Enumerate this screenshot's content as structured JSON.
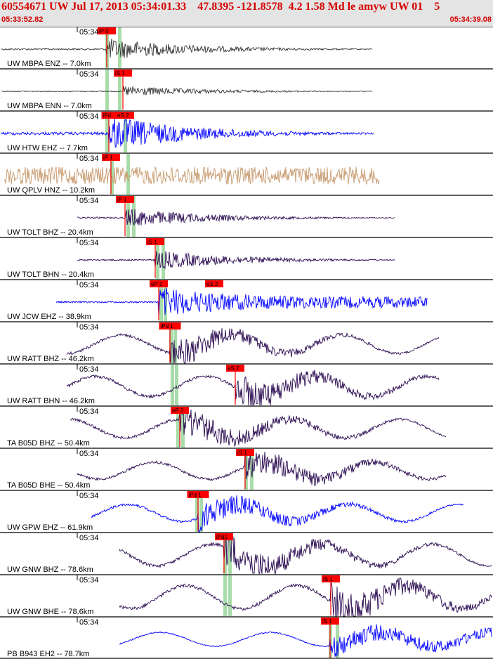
{
  "header": {
    "title": "60554671 UW Jul 17, 2013 05:34:01.33    47.8395 -121.8578  4.2 1.58 Md le amyw UW 01    5",
    "start_time": "05:33:52.82",
    "end_time": "05:34:39.08"
  },
  "colors": {
    "accent": "#d40000",
    "header_bg": "#e4e4e4",
    "pick_flag": "#ff0000",
    "pick_window": "#a8dca8"
  },
  "time_axis": {
    "tick_label": "05:34"
  },
  "traces": [
    {
      "label": "UW MBPA ENZ -- 7.0km",
      "color": "#333333",
      "pick": "iP 0",
      "pick2": ""
    },
    {
      "label": "UW MBPA ENN -- 7.0km",
      "color": "#333333",
      "pick": "iS 1",
      "pick2": ""
    },
    {
      "label": "UW HTW EHZ -- 7.7km",
      "color": "#0000ff",
      "pick": "iPd",
      "pick2": "eS 2"
    },
    {
      "label": "UW QPLV HNZ -- 10.2km",
      "color": "#c89a6e",
      "pick": "iP 1",
      "pick2": ""
    },
    {
      "label": "UW TOLT BHZ -- 20.4km",
      "color": "#2a0a50",
      "pick": "iP 1",
      "pick2": ""
    },
    {
      "label": "UW TOLT BHN -- 20.4km",
      "color": "#2a0a50",
      "pick": "iS 1",
      "pick2": ""
    },
    {
      "label": "UW JCW EHZ -- 38.9km",
      "color": "#0000ff",
      "pick": "eP 2",
      "pick2": "eS 2"
    },
    {
      "label": "UW RATT BHZ -- 46.2km",
      "color": "#2a0a50",
      "pick": "iPd 1",
      "pick2": ""
    },
    {
      "label": "UW RATT BHN -- 46.2km",
      "color": "#2a0a50",
      "pick": "eS 2",
      "pick2": ""
    },
    {
      "label": "TA B05D BHZ -- 50.4km",
      "color": "#2a0a50",
      "pick": "eP 2",
      "pick2": ""
    },
    {
      "label": "TA B05D BHE -- 50.4km",
      "color": "#2a0a50",
      "pick": "iS 1",
      "pick2": ""
    },
    {
      "label": "UW GPW EHZ -- 61.9km",
      "color": "#0000ff",
      "pick": "iPd 1",
      "pick2": ""
    },
    {
      "label": "UW GNW BHZ -- 78.6km",
      "color": "#2a0a50",
      "pick": "iPd1",
      "pick2": ""
    },
    {
      "label": "UW GNW BHE -- 78.6km",
      "color": "#2a0a50",
      "pick": "iS 1",
      "pick2": ""
    },
    {
      "label": "PB B943 EH2 -- 78.7km",
      "color": "#0000ff",
      "pick": "iS 1",
      "pick2": ""
    }
  ]
}
